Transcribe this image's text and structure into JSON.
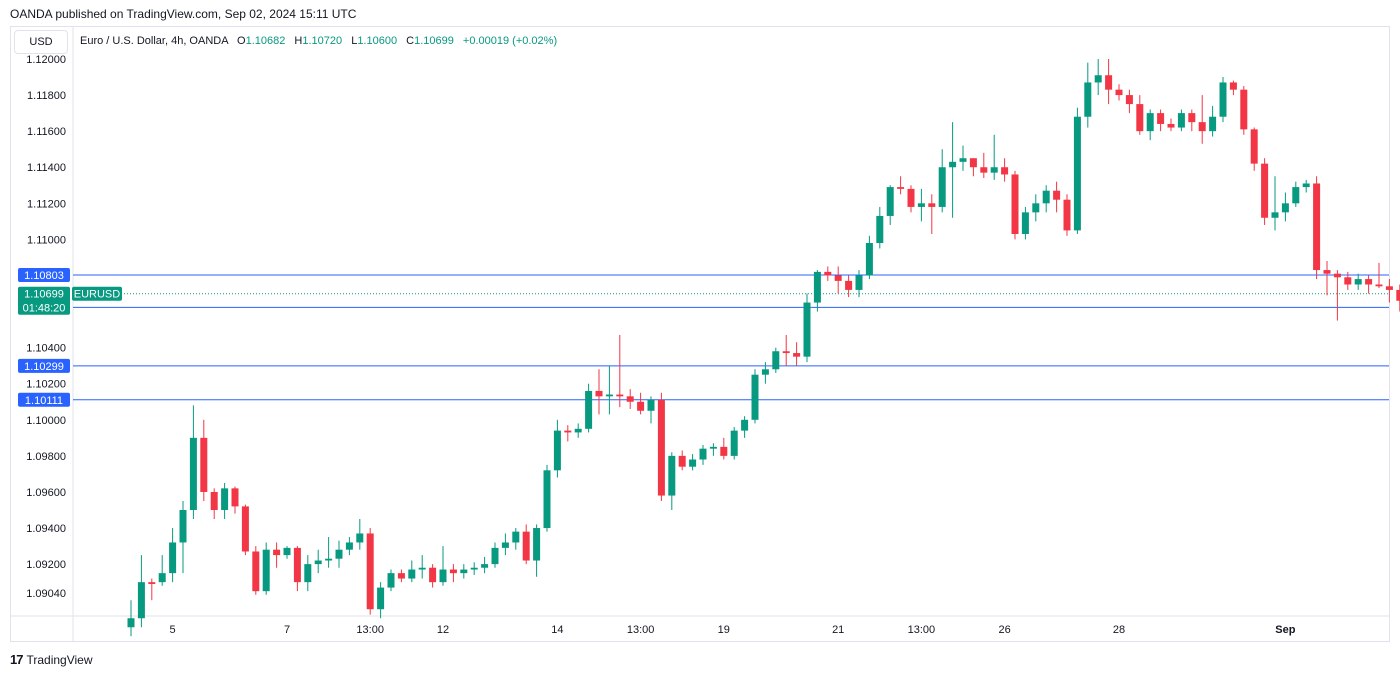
{
  "publisher_line": "OANDA published on TradingView.com, Sep 02, 2024 15:11 UTC",
  "currency_button": "USD",
  "legend": {
    "symbol": "Euro / U.S. Dollar, 4h, OANDA",
    "open_label": "O",
    "open": "1.10682",
    "high_label": "H",
    "high": "1.10720",
    "low_label": "L",
    "low": "1.10600",
    "close_label": "C",
    "close": "1.10699",
    "change": "+0.00019 (+0.02%)"
  },
  "footer_brand": "TradingView",
  "colors": {
    "up": "#089981",
    "down": "#f23645",
    "level_line": "#2962ff",
    "price_tag": "#089981"
  },
  "chart_data": {
    "type": "candlestick",
    "y_axis_ticks": [
      "1.12000",
      "1.11800",
      "1.11600",
      "1.11400",
      "1.11200",
      "1.11000",
      "1.10400",
      "1.10200",
      "1.10000",
      "1.09800",
      "1.09600",
      "1.09400",
      "1.09200",
      "1.09040"
    ],
    "ylim": [
      1.0884,
      1.1205
    ],
    "x_axis_labels": [
      {
        "label": "5",
        "index": 4
      },
      {
        "label": "7",
        "index": 15
      },
      {
        "label": "13:00",
        "index": 23
      },
      {
        "label": "12",
        "index": 30
      },
      {
        "label": "14",
        "index": 41
      },
      {
        "label": "13:00",
        "index": 49
      },
      {
        "label": "19",
        "index": 57
      },
      {
        "label": "21",
        "index": 68
      },
      {
        "label": "13:00",
        "index": 76
      },
      {
        "label": "26",
        "index": 84
      },
      {
        "label": "28",
        "index": 95
      },
      {
        "label": "Sep",
        "index": 111
      }
    ],
    "horizontal_levels": [
      {
        "label": "1.10803",
        "price": 1.10803
      },
      {
        "label": "1.10623",
        "price": 1.10623
      },
      {
        "label": "1.10299",
        "price": 1.10299
      },
      {
        "label": "1.10111",
        "price": 1.10111
      }
    ],
    "current_price": {
      "price": 1.10699,
      "label": "1.10699",
      "countdown": "01:48:20",
      "symbol": "EURUSD"
    },
    "candles": [
      [
        1.0885,
        1.09,
        1.088,
        1.089
      ],
      [
        1.089,
        1.0925,
        1.0885,
        1.091
      ],
      [
        1.091,
        1.0912,
        1.09,
        1.0909
      ],
      [
        1.091,
        1.0925,
        1.0908,
        1.0915
      ],
      [
        1.0915,
        1.094,
        1.091,
        1.0932
      ],
      [
        1.0932,
        1.0955,
        1.0915,
        1.095
      ],
      [
        1.095,
        1.1008,
        1.0945,
        1.099
      ],
      [
        1.099,
        1.1,
        1.0955,
        1.096
      ],
      [
        1.096,
        1.0962,
        1.0945,
        1.095
      ],
      [
        1.095,
        1.0965,
        1.0945,
        1.0962
      ],
      [
        1.0962,
        1.0963,
        1.0948,
        1.0952
      ],
      [
        1.0952,
        1.0953,
        1.0925,
        1.0927
      ],
      [
        1.0927,
        1.093,
        1.0903,
        1.0905
      ],
      [
        1.0905,
        1.0932,
        1.0903,
        1.0928
      ],
      [
        1.0928,
        1.0932,
        1.0918,
        1.0925
      ],
      [
        1.0925,
        1.093,
        1.0923,
        1.0929
      ],
      [
        1.0929,
        1.093,
        1.0905,
        1.091
      ],
      [
        1.091,
        1.0925,
        1.0905,
        1.092
      ],
      [
        1.092,
        1.0928,
        1.0915,
        1.0922
      ],
      [
        1.0922,
        1.0935,
        1.0918,
        1.0923
      ],
      [
        1.0923,
        1.0933,
        1.0918,
        1.0928
      ],
      [
        1.0928,
        1.0935,
        1.0925,
        1.0932
      ],
      [
        1.0932,
        1.0945,
        1.0928,
        1.0937
      ],
      [
        1.0937,
        1.094,
        1.0892,
        1.0895
      ],
      [
        1.0895,
        1.091,
        1.089,
        1.0907
      ],
      [
        1.0907,
        1.0917,
        1.0905,
        1.0915
      ],
      [
        1.0915,
        1.0917,
        1.091,
        1.0912
      ],
      [
        1.0912,
        1.0922,
        1.091,
        1.0917
      ],
      [
        1.0917,
        1.0925,
        1.0912,
        1.0918
      ],
      [
        1.0918,
        1.092,
        1.0907,
        1.091
      ],
      [
        1.091,
        1.093,
        1.0908,
        1.0917
      ],
      [
        1.0917,
        1.092,
        1.091,
        1.0915
      ],
      [
        1.0915,
        1.092,
        1.0912,
        1.0917
      ],
      [
        1.0917,
        1.0921,
        1.0914,
        1.0918
      ],
      [
        1.0918,
        1.0924,
        1.0915,
        1.092
      ],
      [
        1.092,
        1.0932,
        1.0918,
        1.0929
      ],
      [
        1.0929,
        1.0937,
        1.0925,
        1.0932
      ],
      [
        1.0932,
        1.094,
        1.0928,
        1.0938
      ],
      [
        1.0938,
        1.0942,
        1.092,
        1.0922
      ],
      [
        1.0922,
        1.0942,
        1.0913,
        1.094
      ],
      [
        1.094,
        1.0975,
        1.0938,
        1.0972
      ],
      [
        1.0972,
        1.1,
        1.0968,
        1.0994
      ],
      [
        1.0994,
        1.0997,
        1.0988,
        1.0993
      ],
      [
        1.0993,
        1.0998,
        1.099,
        1.0995
      ],
      [
        1.0995,
        1.102,
        1.0993,
        1.1016
      ],
      [
        1.1016,
        1.1028,
        1.1003,
        1.1013
      ],
      [
        1.1013,
        1.103,
        1.1003,
        1.1014
      ],
      [
        1.1014,
        1.1047,
        1.1007,
        1.1013
      ],
      [
        1.1013,
        1.1017,
        1.1006,
        1.101
      ],
      [
        1.101,
        1.1015,
        1.1003,
        1.1005
      ],
      [
        1.1005,
        1.1013,
        1.0998,
        1.1011
      ],
      [
        1.1011,
        1.1015,
        1.0955,
        1.0958
      ],
      [
        1.0958,
        1.0982,
        1.095,
        1.098
      ],
      [
        1.098,
        1.0983,
        1.0972,
        1.0974
      ],
      [
        1.0974,
        1.0981,
        1.0972,
        1.0978
      ],
      [
        1.0978,
        1.0986,
        1.0975,
        1.0984
      ],
      [
        1.0984,
        1.0987,
        1.098,
        1.0985
      ],
      [
        1.0985,
        1.099,
        1.0978,
        1.098
      ],
      [
        1.098,
        1.0996,
        1.0978,
        1.0994
      ],
      [
        1.0994,
        1.1002,
        1.099,
        1.1
      ],
      [
        1.1,
        1.1028,
        1.0998,
        1.1025
      ],
      [
        1.1025,
        1.1032,
        1.102,
        1.1028
      ],
      [
        1.1028,
        1.104,
        1.1026,
        1.1038
      ],
      [
        1.1038,
        1.1047,
        1.103,
        1.1037
      ],
      [
        1.1037,
        1.1043,
        1.103,
        1.1035
      ],
      [
        1.1035,
        1.107,
        1.1032,
        1.1065
      ],
      [
        1.1065,
        1.1083,
        1.106,
        1.1082
      ],
      [
        1.1082,
        1.1085,
        1.1077,
        1.108
      ],
      [
        1.108,
        1.1085,
        1.107,
        1.1077
      ],
      [
        1.1077,
        1.108,
        1.1068,
        1.1072
      ],
      [
        1.1072,
        1.1083,
        1.1068,
        1.108
      ],
      [
        1.108,
        1.1102,
        1.1078,
        1.1098
      ],
      [
        1.1098,
        1.1118,
        1.1095,
        1.1113
      ],
      [
        1.1113,
        1.113,
        1.1108,
        1.1129
      ],
      [
        1.1129,
        1.1135,
        1.1125,
        1.1128
      ],
      [
        1.1128,
        1.113,
        1.1115,
        1.1118
      ],
      [
        1.1118,
        1.1128,
        1.111,
        1.112
      ],
      [
        1.112,
        1.1125,
        1.1103,
        1.1118
      ],
      [
        1.1118,
        1.115,
        1.1115,
        1.114
      ],
      [
        1.114,
        1.1165,
        1.1112,
        1.1143
      ],
      [
        1.1143,
        1.1152,
        1.1138,
        1.1145
      ],
      [
        1.1145,
        1.1145,
        1.1135,
        1.114
      ],
      [
        1.114,
        1.1148,
        1.1134,
        1.1137
      ],
      [
        1.1137,
        1.1158,
        1.1133,
        1.114
      ],
      [
        1.114,
        1.1145,
        1.1132,
        1.1136
      ],
      [
        1.1136,
        1.1138,
        1.11,
        1.1103
      ],
      [
        1.1103,
        1.1118,
        1.11,
        1.1115
      ],
      [
        1.1115,
        1.1125,
        1.111,
        1.112
      ],
      [
        1.112,
        1.113,
        1.1115,
        1.1127
      ],
      [
        1.1127,
        1.1132,
        1.1115,
        1.1122
      ],
      [
        1.1122,
        1.1125,
        1.1102,
        1.1105
      ],
      [
        1.1105,
        1.1173,
        1.1103,
        1.1168
      ],
      [
        1.1168,
        1.1198,
        1.1162,
        1.1187
      ],
      [
        1.1187,
        1.12,
        1.118,
        1.1191
      ],
      [
        1.1191,
        1.12,
        1.1175,
        1.1183
      ],
      [
        1.1183,
        1.1186,
        1.1177,
        1.118
      ],
      [
        1.118,
        1.1183,
        1.117,
        1.1175
      ],
      [
        1.1175,
        1.118,
        1.1158,
        1.116
      ],
      [
        1.116,
        1.1172,
        1.1155,
        1.117
      ],
      [
        1.117,
        1.1172,
        1.116,
        1.1164
      ],
      [
        1.1164,
        1.1167,
        1.116,
        1.1162
      ],
      [
        1.1162,
        1.1172,
        1.116,
        1.117
      ],
      [
        1.117,
        1.1172,
        1.116,
        1.1165
      ],
      [
        1.1165,
        1.118,
        1.1153,
        1.116
      ],
      [
        1.116,
        1.1174,
        1.1157,
        1.1168
      ],
      [
        1.1168,
        1.119,
        1.1165,
        1.1187
      ],
      [
        1.1187,
        1.1188,
        1.118,
        1.1183
      ],
      [
        1.1183,
        1.1185,
        1.1158,
        1.1161
      ],
      [
        1.1161,
        1.1162,
        1.1138,
        1.1142
      ],
      [
        1.1142,
        1.1145,
        1.1108,
        1.1112
      ],
      [
        1.1112,
        1.1135,
        1.1105,
        1.1115
      ],
      [
        1.1115,
        1.1126,
        1.111,
        1.112
      ],
      [
        1.112,
        1.1132,
        1.1118,
        1.1129
      ],
      [
        1.1129,
        1.1133,
        1.1126,
        1.1131
      ],
      [
        1.1131,
        1.1135,
        1.1078,
        1.1083
      ],
      [
        1.1083,
        1.1088,
        1.1069,
        1.1081
      ],
      [
        1.1081,
        1.1083,
        1.1055,
        1.1079
      ],
      [
        1.1079,
        1.1082,
        1.1072,
        1.1075
      ],
      [
        1.1075,
        1.1081,
        1.1072,
        1.1078
      ],
      [
        1.1078,
        1.108,
        1.107,
        1.1075
      ],
      [
        1.1075,
        1.1087,
        1.1073,
        1.1074
      ],
      [
        1.1074,
        1.1078,
        1.1065,
        1.1072
      ],
      [
        1.1072,
        1.1075,
        1.106,
        1.1066
      ],
      [
        1.1066,
        1.107,
        1.1045,
        1.1048
      ],
      [
        1.1048,
        1.1055,
        1.1044,
        1.1047
      ],
      [
        1.1047,
        1.1057,
        1.1043,
        1.1053
      ],
      [
        1.1053,
        1.1056,
        1.1045,
        1.1048
      ],
      [
        1.1048,
        1.1076,
        1.1046,
        1.1068
      ],
      [
        1.1068,
        1.1072,
        1.1062,
        1.1068
      ],
      [
        1.1068,
        1.1072,
        1.106,
        1.107
      ]
    ]
  }
}
